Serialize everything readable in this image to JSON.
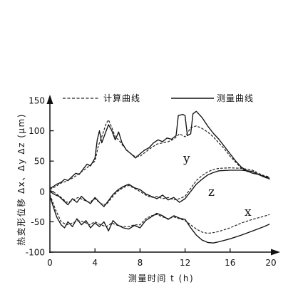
{
  "chart_data": {
    "type": "line",
    "xlabel": "测量时间 t (h)",
    "ylabel": "热变形位移 Δx、Δy Δz (μm)",
    "xlim": [
      0,
      20
    ],
    "ylim": [
      -100,
      150
    ],
    "xticks": [
      0,
      4,
      8,
      12,
      16,
      20
    ],
    "yticks": [
      150,
      100,
      50,
      0,
      -50,
      -100
    ],
    "grid": false,
    "legend_position": "top",
    "legend": [
      {
        "label": "计算曲线",
        "dash": true
      },
      {
        "label": "测量曲线",
        "dash": false
      }
    ],
    "curve_labels": [
      "y",
      "z",
      "x"
    ],
    "series": [
      {
        "curve": 0,
        "legend": 1,
        "x": [
          0,
          0.3,
          0.6,
          1.0,
          1.3,
          1.6,
          2.0,
          2.3,
          2.6,
          3.0,
          3.3,
          3.6,
          4.0,
          4.2,
          4.4,
          4.6,
          4.9,
          5.2,
          5.5,
          5.8,
          6.1,
          6.4,
          6.8,
          7.2,
          7.6,
          8.0,
          8.4,
          8.8,
          9.2,
          9.6,
          10.0,
          10.4,
          10.8,
          11.2,
          11.4,
          11.8,
          12.0,
          12.2,
          12.5,
          12.7,
          13.0,
          13.5,
          14.0,
          14.5,
          15.0,
          15.5,
          16.0,
          16.5,
          17.0,
          17.5,
          18.0,
          18.5,
          19.0,
          19.5
        ],
        "y": [
          5,
          8,
          12,
          15,
          20,
          18,
          25,
          30,
          28,
          38,
          45,
          42,
          55,
          85,
          100,
          80,
          95,
          110,
          100,
          85,
          98,
          80,
          68,
          62,
          55,
          62,
          68,
          72,
          80,
          85,
          82,
          88,
          86,
          92,
          125,
          127,
          125,
          92,
          95,
          128,
          132,
          122,
          108,
          96,
          86,
          74,
          62,
          50,
          40,
          34,
          30,
          28,
          25,
          22
        ]
      },
      {
        "curve": 0,
        "legend": 0,
        "x": [
          0,
          0.5,
          1.0,
          1.5,
          2.0,
          2.5,
          3.0,
          3.5,
          4.0,
          4.3,
          4.6,
          5.0,
          5.2,
          5.5,
          5.8,
          6.1,
          6.5,
          7.0,
          7.5,
          8.0,
          8.5,
          9.0,
          9.5,
          10.0,
          10.5,
          11.0,
          11.5,
          12.0,
          12.5,
          13.0,
          13.5,
          14.0,
          14.5,
          15.0,
          15.5,
          16.0,
          16.5,
          17.0,
          17.5,
          18.0,
          18.5,
          19.0,
          19.5
        ],
        "y": [
          3,
          8,
          14,
          17,
          22,
          28,
          35,
          42,
          50,
          75,
          90,
          112,
          118,
          105,
          90,
          85,
          75,
          65,
          58,
          58,
          65,
          72,
          78,
          80,
          82,
          86,
          95,
          90,
          105,
          108,
          104,
          98,
          90,
          80,
          70,
          58,
          48,
          38,
          33,
          30,
          28,
          24,
          20
        ]
      },
      {
        "curve": 1,
        "legend": 1,
        "x": [
          0,
          0.4,
          0.8,
          1.2,
          1.6,
          2.0,
          2.4,
          2.8,
          3.2,
          3.6,
          4.0,
          4.4,
          4.8,
          5.2,
          5.6,
          6.0,
          6.5,
          7.0,
          7.5,
          8.0,
          8.5,
          9.0,
          9.5,
          10.0,
          10.5,
          11.0,
          11.5,
          12.0,
          12.5,
          13.0,
          13.5,
          14.0,
          14.5,
          15.0,
          16.0,
          17.0,
          18.0,
          18.5,
          19.0,
          19.5
        ],
        "y": [
          0,
          -5,
          -8,
          -15,
          -22,
          -12,
          -18,
          -8,
          -15,
          -20,
          -10,
          -18,
          -25,
          -15,
          -5,
          2,
          8,
          12,
          6,
          3,
          -4,
          -8,
          -12,
          -6,
          -14,
          -10,
          -18,
          -12,
          0,
          12,
          20,
          27,
          31,
          34,
          35,
          35,
          33,
          28,
          24,
          21
        ]
      },
      {
        "curve": 1,
        "legend": 0,
        "x": [
          0,
          0.5,
          1.0,
          1.5,
          2.0,
          2.5,
          3.0,
          3.5,
          4.0,
          4.5,
          5.0,
          5.5,
          6.0,
          6.5,
          7.0,
          7.5,
          8.0,
          8.5,
          9.0,
          9.5,
          10.0,
          10.5,
          11.0,
          11.5,
          12.0,
          12.5,
          13.0,
          13.5,
          14.0,
          14.5,
          15.0,
          16.0,
          17.0,
          18.0,
          18.5,
          19.0,
          19.5
        ],
        "y": [
          2,
          -3,
          -10,
          -18,
          -15,
          -10,
          -14,
          -18,
          -12,
          -20,
          -22,
          -10,
          0,
          6,
          10,
          5,
          0,
          -6,
          -10,
          -8,
          -12,
          -10,
          -14,
          -12,
          -8,
          5,
          18,
          26,
          32,
          36,
          38,
          39,
          38,
          35,
          30,
          26,
          24
        ]
      },
      {
        "curve": 2,
        "legend": 1,
        "x": [
          0,
          0.3,
          0.6,
          1.0,
          1.3,
          1.6,
          2.0,
          2.4,
          2.8,
          3.2,
          3.6,
          4.0,
          4.4,
          4.8,
          5.2,
          5.6,
          6.0,
          6.5,
          7.0,
          7.5,
          8.0,
          8.5,
          9.0,
          9.5,
          10.0,
          10.5,
          11.0,
          11.5,
          12.0,
          12.5,
          13.0,
          13.5,
          14.0,
          14.5,
          15.0,
          16.0,
          17.0,
          18.0,
          19.0,
          19.5
        ],
        "y": [
          -8,
          -25,
          -42,
          -55,
          -60,
          -50,
          -58,
          -45,
          -55,
          -48,
          -60,
          -52,
          -58,
          -50,
          -65,
          -48,
          -55,
          -60,
          -62,
          -56,
          -60,
          -48,
          -42,
          -36,
          -40,
          -46,
          -40,
          -44,
          -46,
          -60,
          -72,
          -80,
          -84,
          -85,
          -83,
          -78,
          -72,
          -65,
          -58,
          -54
        ]
      },
      {
        "curve": 2,
        "legend": 0,
        "x": [
          0,
          0.5,
          1.0,
          1.5,
          2.0,
          2.5,
          3.0,
          3.5,
          4.0,
          4.5,
          5.0,
          5.5,
          6.0,
          6.5,
          7.0,
          7.5,
          8.0,
          8.5,
          9.0,
          9.5,
          10.0,
          10.5,
          11.0,
          11.5,
          12.0,
          12.5,
          13.0,
          13.5,
          14.0,
          14.5,
          15.0,
          16.0,
          17.0,
          18.0,
          19.0,
          19.5
        ],
        "y": [
          -5,
          -30,
          -50,
          -55,
          -52,
          -48,
          -50,
          -55,
          -50,
          -55,
          -58,
          -52,
          -56,
          -58,
          -58,
          -55,
          -55,
          -45,
          -40,
          -38,
          -42,
          -45,
          -42,
          -45,
          -48,
          -55,
          -62,
          -67,
          -69,
          -68,
          -66,
          -60,
          -52,
          -46,
          -41,
          -38
        ]
      }
    ]
  }
}
